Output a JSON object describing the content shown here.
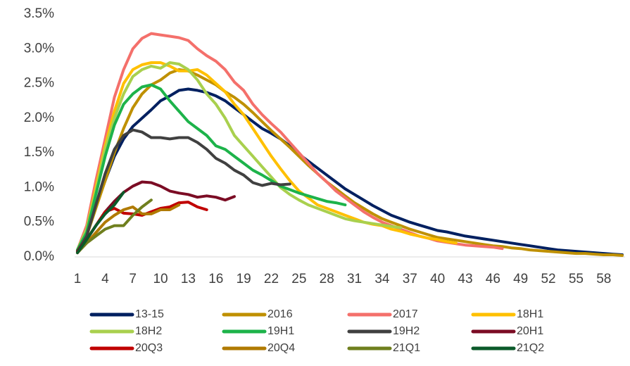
{
  "chart_data": {
    "type": "line",
    "x": [
      1,
      2,
      3,
      4,
      5,
      6,
      7,
      8,
      9,
      10,
      11,
      12,
      13,
      14,
      15,
      16,
      17,
      18,
      19,
      20,
      21,
      22,
      23,
      24,
      25,
      26,
      27,
      28,
      29,
      30,
      31,
      32,
      33,
      34,
      35,
      36,
      37,
      38,
      39,
      40,
      41,
      42,
      43,
      44,
      45,
      46,
      47,
      48,
      49,
      50,
      51,
      52,
      53,
      54,
      55,
      56,
      57,
      58,
      59,
      60
    ],
    "xlim": [
      1,
      60
    ],
    "xticks": [
      1,
      4,
      7,
      10,
      13,
      16,
      19,
      22,
      25,
      28,
      31,
      34,
      37,
      40,
      43,
      46,
      49,
      52,
      55,
      58
    ],
    "ylim": [
      0,
      3.5
    ],
    "yticks": [
      {
        "value": 0,
        "label": "0.0%"
      },
      {
        "value": 0.5,
        "label": "0.5%"
      },
      {
        "value": 1,
        "label": "1.0%"
      },
      {
        "value": 1.5,
        "label": "1.5%"
      },
      {
        "value": 2,
        "label": "2.0%"
      },
      {
        "value": 2.5,
        "label": "2.5%"
      },
      {
        "value": 3,
        "label": "3.0%"
      },
      {
        "value": 3.5,
        "label": "3.5%"
      }
    ],
    "series": [
      {
        "name": "13-15",
        "color": "#002060",
        "values": [
          0.1,
          0.35,
          0.75,
          1.1,
          1.45,
          1.7,
          1.88,
          2.0,
          2.12,
          2.25,
          2.32,
          2.4,
          2.42,
          2.4,
          2.37,
          2.32,
          2.25,
          2.15,
          2.05,
          1.95,
          1.85,
          1.78,
          1.7,
          1.6,
          1.48,
          1.38,
          1.28,
          1.18,
          1.08,
          0.98,
          0.9,
          0.82,
          0.74,
          0.67,
          0.6,
          0.55,
          0.5,
          0.46,
          0.42,
          0.38,
          0.36,
          0.33,
          0.3,
          0.28,
          0.26,
          0.24,
          0.22,
          0.2,
          0.18,
          0.16,
          0.14,
          0.12,
          0.1,
          0.09,
          0.08,
          0.07,
          0.06,
          0.05,
          0.04,
          0.03
        ]
      },
      {
        "name": "2016",
        "color": "#bf9000",
        "values": [
          0.08,
          0.3,
          0.7,
          1.1,
          1.5,
          1.85,
          2.15,
          2.35,
          2.48,
          2.55,
          2.65,
          2.7,
          2.68,
          2.62,
          2.55,
          2.48,
          2.38,
          2.3,
          2.2,
          2.08,
          1.95,
          1.82,
          1.7,
          1.58,
          1.45,
          1.32,
          1.2,
          1.08,
          0.98,
          0.88,
          0.78,
          0.7,
          0.62,
          0.55,
          0.5,
          0.45,
          0.4,
          0.36,
          0.32,
          0.28,
          0.26,
          0.24,
          0.22,
          0.2,
          0.18,
          0.16,
          0.15,
          0.13,
          0.12,
          0.1,
          0.09,
          0.08,
          0.07,
          0.06,
          0.05,
          0.05,
          0.04,
          0.03,
          0.03,
          0.02
        ]
      },
      {
        "name": "2017",
        "color": "#f4706b",
        "values": [
          0.1,
          0.45,
          1.1,
          1.7,
          2.3,
          2.7,
          3.0,
          3.15,
          3.22,
          3.2,
          3.18,
          3.16,
          3.12,
          3.0,
          2.9,
          2.82,
          2.7,
          2.52,
          2.4,
          2.2,
          2.05,
          1.92,
          1.8,
          1.65,
          1.5,
          1.35,
          1.2,
          1.08,
          0.95,
          0.85,
          0.75,
          0.65,
          0.57,
          0.5,
          0.45,
          0.4,
          0.35,
          0.3,
          0.27,
          0.23,
          0.21,
          0.19,
          0.17,
          0.16,
          0.15,
          0.14,
          0.12,
          null,
          null,
          null,
          null,
          null,
          null,
          null,
          null,
          null,
          null,
          null,
          null,
          null
        ]
      },
      {
        "name": "18H1",
        "color": "#ffc000",
        "values": [
          0.1,
          0.4,
          1.0,
          1.6,
          2.1,
          2.5,
          2.7,
          2.77,
          2.8,
          2.8,
          2.75,
          2.68,
          2.68,
          2.7,
          2.62,
          2.5,
          2.38,
          2.2,
          2.05,
          1.85,
          1.65,
          1.45,
          1.27,
          1.1,
          0.95,
          0.85,
          0.75,
          0.7,
          0.65,
          0.6,
          0.55,
          0.5,
          0.47,
          0.45,
          0.4,
          0.37,
          0.33,
          0.3,
          0.27,
          0.25,
          0.22,
          0.2,
          null,
          null,
          null,
          null,
          null,
          null,
          null,
          null,
          null,
          null,
          null,
          null,
          null,
          null,
          null,
          null,
          null,
          null
        ]
      },
      {
        "name": "18H2",
        "color": "#a9d04e",
        "values": [
          0.1,
          0.4,
          0.95,
          1.55,
          2.0,
          2.35,
          2.6,
          2.7,
          2.75,
          2.72,
          2.8,
          2.78,
          2.7,
          2.55,
          2.35,
          2.2,
          2.0,
          1.75,
          1.6,
          1.45,
          1.3,
          1.15,
          1.0,
          0.9,
          0.82,
          0.75,
          0.7,
          0.65,
          0.6,
          0.55,
          0.52,
          0.5,
          0.48,
          0.46,
          0.44,
          0.42,
          null,
          null,
          null,
          null,
          null,
          null,
          null,
          null,
          null,
          null,
          null,
          null,
          null,
          null,
          null,
          null,
          null,
          null,
          null,
          null,
          null,
          null,
          null,
          null
        ]
      },
      {
        "name": "19H1",
        "color": "#1db34a",
        "values": [
          0.1,
          0.35,
          0.9,
          1.45,
          1.9,
          2.2,
          2.35,
          2.45,
          2.48,
          2.42,
          2.25,
          2.1,
          1.95,
          1.85,
          1.75,
          1.6,
          1.55,
          1.45,
          1.35,
          1.25,
          1.18,
          1.1,
          1.02,
          0.97,
          0.92,
          0.88,
          0.84,
          0.8,
          0.78,
          0.75,
          null,
          null,
          null,
          null,
          null,
          null,
          null,
          null,
          null,
          null,
          null,
          null,
          null,
          null,
          null,
          null,
          null,
          null,
          null,
          null,
          null,
          null,
          null,
          null,
          null,
          null,
          null,
          null,
          null,
          null
        ]
      },
      {
        "name": "19H2",
        "color": "#404040",
        "values": [
          0.08,
          0.3,
          0.75,
          1.2,
          1.55,
          1.75,
          1.83,
          1.8,
          1.72,
          1.72,
          1.7,
          1.72,
          1.72,
          1.65,
          1.55,
          1.42,
          1.35,
          1.25,
          1.18,
          1.07,
          1.03,
          1.06,
          1.04,
          1.05,
          null,
          null,
          null,
          null,
          null,
          null,
          null,
          null,
          null,
          null,
          null,
          null,
          null,
          null,
          null,
          null,
          null,
          null,
          null,
          null,
          null,
          null,
          null,
          null,
          null,
          null,
          null,
          null,
          null,
          null,
          null,
          null,
          null,
          null,
          null,
          null
        ]
      },
      {
        "name": "20H1",
        "color": "#7b0c24",
        "values": [
          0.08,
          0.25,
          0.45,
          0.65,
          0.8,
          0.93,
          1.02,
          1.08,
          1.07,
          1.02,
          0.95,
          0.92,
          0.9,
          0.86,
          0.88,
          0.86,
          0.82,
          0.87,
          null,
          null,
          null,
          null,
          null,
          null,
          null,
          null,
          null,
          null,
          null,
          null,
          null,
          null,
          null,
          null,
          null,
          null,
          null,
          null,
          null,
          null,
          null,
          null,
          null,
          null,
          null,
          null,
          null,
          null,
          null,
          null,
          null,
          null,
          null,
          null,
          null,
          null,
          null,
          null,
          null,
          null
        ]
      },
      {
        "name": "20Q3",
        "color": "#c00000",
        "values": [
          0.06,
          0.25,
          0.45,
          0.65,
          0.7,
          0.63,
          0.62,
          0.6,
          0.65,
          0.7,
          0.72,
          0.78,
          0.79,
          0.72,
          0.68,
          null,
          null,
          null,
          null,
          null,
          null,
          null,
          null,
          null,
          null,
          null,
          null,
          null,
          null,
          null,
          null,
          null,
          null,
          null,
          null,
          null,
          null,
          null,
          null,
          null,
          null,
          null,
          null,
          null,
          null,
          null,
          null,
          null,
          null,
          null,
          null,
          null,
          null,
          null,
          null,
          null,
          null,
          null,
          null,
          null
        ]
      },
      {
        "name": "20Q4",
        "color": "#b07a00",
        "values": [
          0.06,
          0.2,
          0.35,
          0.5,
          0.6,
          0.68,
          0.72,
          0.62,
          0.62,
          0.68,
          0.68,
          0.75,
          null,
          null,
          null,
          null,
          null,
          null,
          null,
          null,
          null,
          null,
          null,
          null,
          null,
          null,
          null,
          null,
          null,
          null,
          null,
          null,
          null,
          null,
          null,
          null,
          null,
          null,
          null,
          null,
          null,
          null,
          null,
          null,
          null,
          null,
          null,
          null,
          null,
          null,
          null,
          null,
          null,
          null,
          null,
          null,
          null,
          null,
          null,
          null
        ]
      },
      {
        "name": "21Q1",
        "color": "#6f7f1e",
        "values": [
          0.06,
          0.2,
          0.3,
          0.4,
          0.45,
          0.45,
          0.6,
          0.72,
          0.82,
          null,
          null,
          null,
          null,
          null,
          null,
          null,
          null,
          null,
          null,
          null,
          null,
          null,
          null,
          null,
          null,
          null,
          null,
          null,
          null,
          null,
          null,
          null,
          null,
          null,
          null,
          null,
          null,
          null,
          null,
          null,
          null,
          null,
          null,
          null,
          null,
          null,
          null,
          null,
          null,
          null,
          null,
          null,
          null,
          null,
          null,
          null,
          null,
          null,
          null,
          null
        ]
      },
      {
        "name": "21Q2",
        "color": "#0b5a2a",
        "values": [
          0.06,
          0.25,
          0.45,
          0.62,
          0.75,
          0.93,
          null,
          null,
          null,
          null,
          null,
          null,
          null,
          null,
          null,
          null,
          null,
          null,
          null,
          null,
          null,
          null,
          null,
          null,
          null,
          null,
          null,
          null,
          null,
          null,
          null,
          null,
          null,
          null,
          null,
          null,
          null,
          null,
          null,
          null,
          null,
          null,
          null,
          null,
          null,
          null,
          null,
          null,
          null,
          null,
          null,
          null,
          null,
          null,
          null,
          null,
          null,
          null,
          null,
          null
        ]
      }
    ]
  }
}
